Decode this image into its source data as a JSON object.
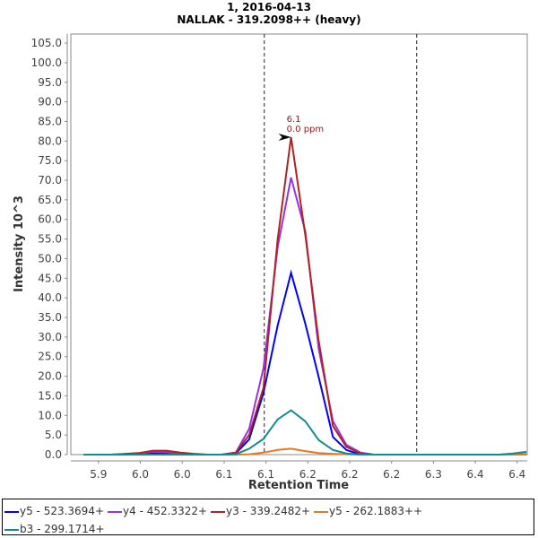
{
  "title": "1, 2016-04-13",
  "subtitle": "NALLAK - 319.2098++ (heavy)",
  "chart_data": {
    "type": "line",
    "title": "1, 2016-04-13",
    "subtitle": "NALLAK - 319.2098++ (heavy)",
    "xlabel": "Retention Time",
    "ylabel": "Intensity 10^3",
    "xlim": [
      5.867,
      6.412
    ],
    "ylim": [
      0,
      107.3
    ],
    "xticks": [
      5.9,
      5.95,
      6.0,
      6.05,
      6.1,
      6.15,
      6.2,
      6.25,
      6.3,
      6.35,
      6.4
    ],
    "xtick_labels": [
      "5.9",
      "6.0",
      "6.0",
      "6.1",
      "6.1",
      "6.2",
      "6.2",
      "6.2",
      "6.3",
      "6.4",
      "6.4"
    ],
    "yticks": [
      0,
      5,
      10,
      15,
      20,
      25,
      30,
      35,
      40,
      45,
      50,
      55,
      60,
      65,
      70,
      75,
      80,
      85,
      90,
      95,
      100,
      105
    ],
    "ytick_labels": [
      "0.0",
      "5.0",
      "10.0",
      "15.0",
      "20.0",
      "25.0",
      "30.0",
      "35.0",
      "40.0",
      "45.0",
      "50.0",
      "55.0",
      "60.0",
      "65.0",
      "70.0",
      "75.0",
      "80.0",
      "85.0",
      "90.0",
      "95.0",
      "100.0",
      "105.0"
    ],
    "grid": false,
    "legend_position": "bottom",
    "integration_bounds": [
      6.098,
      6.28
    ],
    "annotation": {
      "x": 6.13,
      "y": 81,
      "lines": [
        "6.1",
        "0.0 ppm"
      ],
      "color": "#8b1a1a"
    },
    "x": [
      5.882,
      5.899,
      5.915,
      5.932,
      5.948,
      5.965,
      5.981,
      5.998,
      6.014,
      6.031,
      6.047,
      6.064,
      6.08,
      6.097,
      6.114,
      6.13,
      6.147,
      6.163,
      6.18,
      6.196,
      6.213,
      6.229,
      6.246,
      6.262,
      6.279,
      6.296,
      6.312,
      6.329,
      6.345,
      6.362,
      6.378,
      6.395,
      6.411
    ],
    "series": [
      {
        "name": "y5 - 523.3694+",
        "color": "#0000ff",
        "values": [
          0,
          0,
          0,
          0,
          0.1,
          0.3,
          0.3,
          0.1,
          0,
          0,
          0,
          0.3,
          3.9,
          15.7,
          33,
          46.4,
          33.4,
          19.8,
          4.5,
          1.2,
          0,
          0,
          0,
          0,
          0,
          0,
          0,
          0,
          0,
          0,
          0,
          0,
          0.1
        ]
      },
      {
        "name": "y4 - 452.3322+",
        "color": "#9932e6",
        "values": [
          0,
          0,
          0,
          0.1,
          0.3,
          0.7,
          0.6,
          0.3,
          0.1,
          0,
          0,
          0.5,
          6.6,
          22,
          53,
          70.7,
          57,
          27,
          8.5,
          2.5,
          0.5,
          0,
          0,
          0,
          0,
          0,
          0,
          0,
          0,
          0,
          0,
          0,
          0
        ]
      },
      {
        "name": "y3 - 339.2482+",
        "color": "#b22222",
        "values": [
          0,
          0,
          0,
          0.2,
          0.4,
          1.0,
          1.0,
          0.5,
          0.2,
          0,
          0,
          0.5,
          5,
          17,
          55,
          81,
          56,
          29,
          7.3,
          2,
          0.3,
          0,
          0,
          0,
          0,
          0,
          0,
          0,
          0,
          0,
          0,
          0,
          0
        ]
      },
      {
        "name": "y5 - 262.1883++",
        "color": "#e87722",
        "values": [
          0,
          0,
          0,
          0,
          0,
          0,
          0,
          0,
          0,
          0,
          0,
          0,
          0.1,
          0.5,
          1.2,
          1.5,
          0.9,
          0.4,
          0.2,
          0.1,
          0,
          0,
          0,
          0,
          0,
          0,
          0,
          0,
          0,
          0,
          0,
          0,
          0
        ]
      },
      {
        "name": "b3 - 299.1714+",
        "color": "#128c8c",
        "values": [
          0,
          0,
          0,
          0,
          0,
          0,
          0,
          0,
          0,
          0,
          0,
          0.1,
          1.5,
          4,
          9,
          11.3,
          8.5,
          3.7,
          1.2,
          0.3,
          0,
          0,
          0,
          0,
          0,
          0,
          0,
          0,
          0,
          0,
          0,
          0.3,
          0.7
        ]
      }
    ]
  }
}
